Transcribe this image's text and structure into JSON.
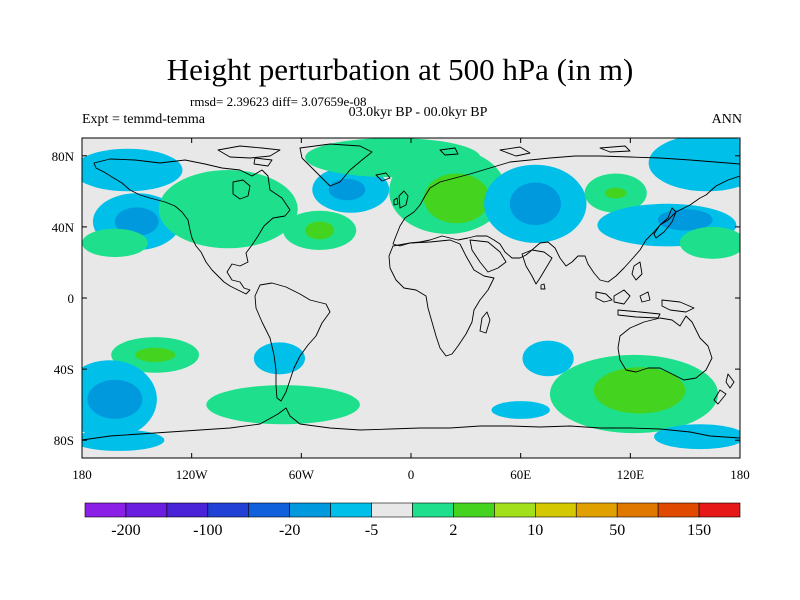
{
  "figure": {
    "title": "Height perturbation at 500 hPa (in m)",
    "stats": "rmsd= 2.39623 diff= 3.07659e-08",
    "experiment": "Expt = temmd-temma",
    "period": "03.0kyr BP - 00.0kyr BP",
    "season": "ANN"
  },
  "map": {
    "lon_range": [
      -180,
      180
    ],
    "lat_range": [
      -90,
      90
    ],
    "lon_ticks": [
      {
        "lon": -180,
        "label": "180"
      },
      {
        "lon": -120,
        "label": "120W"
      },
      {
        "lon": -60,
        "label": "60W"
      },
      {
        "lon": 0,
        "label": "0"
      },
      {
        "lon": 60,
        "label": "60E"
      },
      {
        "lon": 120,
        "label": "120E"
      },
      {
        "lon": 180,
        "label": "180"
      }
    ],
    "lat_ticks": [
      {
        "lat": 80,
        "label": "80N"
      },
      {
        "lat": 40,
        "label": "40N"
      },
      {
        "lat": 0,
        "label": "0"
      },
      {
        "lat": -40,
        "label": "40S"
      },
      {
        "lat": -80,
        "label": "80S"
      }
    ],
    "background_color": "#e8e8e8",
    "coastline_color": "#000000",
    "field_regions": [
      {
        "name": "arctic-cyan-west",
        "lon": -155,
        "lat": 72,
        "rx": 30,
        "ry": 12,
        "color": "#00bfe8"
      },
      {
        "name": "n-pacific-cyan",
        "lon": -150,
        "lat": 43,
        "rx": 24,
        "ry": 16,
        "color": "#00bfe8"
      },
      {
        "name": "n-pacific-blue",
        "lon": -150,
        "lat": 43,
        "rx": 12,
        "ry": 8,
        "color": "#0099dd"
      },
      {
        "name": "w-pacific-green-n",
        "lon": -162,
        "lat": 31,
        "rx": 18,
        "ry": 8,
        "color": "#1ee08c"
      },
      {
        "name": "n-america-green",
        "lon": -100,
        "lat": 50,
        "rx": 38,
        "ry": 22,
        "color": "#1ee08c"
      },
      {
        "name": "n-atlantic-green",
        "lon": -50,
        "lat": 38,
        "rx": 20,
        "ry": 11,
        "color": "#1ee08c"
      },
      {
        "name": "n-atlantic-green-core",
        "lon": -50,
        "lat": 38,
        "rx": 8,
        "ry": 5,
        "color": "#44d31e"
      },
      {
        "name": "greenland-cyan",
        "lon": -33,
        "lat": 61,
        "rx": 21,
        "ry": 13,
        "color": "#00bfe8"
      },
      {
        "name": "greenland-blue",
        "lon": -35,
        "lat": 61,
        "rx": 10,
        "ry": 6,
        "color": "#0099dd"
      },
      {
        "name": "arctic-green",
        "lon": -10,
        "lat": 79,
        "rx": 48,
        "ry": 11,
        "color": "#1ee08c"
      },
      {
        "name": "europe-green",
        "lon": 20,
        "lat": 60,
        "rx": 32,
        "ry": 24,
        "color": "#1ee08c"
      },
      {
        "name": "europe-green-core",
        "lon": 25,
        "lat": 56,
        "rx": 18,
        "ry": 14,
        "color": "#44d31e"
      },
      {
        "name": "siberia-cyan",
        "lon": 68,
        "lat": 53,
        "rx": 28,
        "ry": 22,
        "color": "#00bfe8"
      },
      {
        "name": "siberia-blue",
        "lon": 68,
        "lat": 53,
        "rx": 14,
        "ry": 12,
        "color": "#0099dd"
      },
      {
        "name": "e-siberia-green",
        "lon": 112,
        "lat": 59,
        "rx": 17,
        "ry": 11,
        "color": "#1ee08c"
      },
      {
        "name": "e-siberia-green-core",
        "lon": 112,
        "lat": 59,
        "rx": 6,
        "ry": 3,
        "color": "#44d31e"
      },
      {
        "name": "e-arctic-cyan",
        "lon": 162,
        "lat": 76,
        "rx": 32,
        "ry": 16,
        "color": "#00bfe8"
      },
      {
        "name": "nw-pacific-cyan",
        "lon": 140,
        "lat": 41,
        "rx": 38,
        "ry": 12,
        "color": "#00bfe8"
      },
      {
        "name": "nw-pacific-blue",
        "lon": 150,
        "lat": 44,
        "rx": 15,
        "ry": 6,
        "color": "#0099dd"
      },
      {
        "name": "c-pacific-green",
        "lon": 165,
        "lat": 31,
        "rx": 18,
        "ry": 9,
        "color": "#1ee08c"
      },
      {
        "name": "s-pacific-green",
        "lon": -140,
        "lat": -32,
        "rx": 24,
        "ry": 10,
        "color": "#1ee08c"
      },
      {
        "name": "s-pacific-green-core",
        "lon": -140,
        "lat": -32,
        "rx": 11,
        "ry": 4,
        "color": "#44d31e"
      },
      {
        "name": "s-america-cyan",
        "lon": -72,
        "lat": -34,
        "rx": 14,
        "ry": 9,
        "color": "#00bfe8"
      },
      {
        "name": "sw-pacific-cyan",
        "lon": -165,
        "lat": -57,
        "rx": 26,
        "ry": 22,
        "color": "#00bfe8"
      },
      {
        "name": "sw-pacific-blue",
        "lon": -162,
        "lat": -57,
        "rx": 15,
        "ry": 11,
        "color": "#0099dd"
      },
      {
        "name": "s-atlantic-green",
        "lon": -70,
        "lat": -60,
        "rx": 42,
        "ry": 11,
        "color": "#1ee08c"
      },
      {
        "name": "s-indian-cyan",
        "lon": 75,
        "lat": -34,
        "rx": 14,
        "ry": 10,
        "color": "#00bfe8"
      },
      {
        "name": "s-atlantic-cyan",
        "lon": 60,
        "lat": -63,
        "rx": 16,
        "ry": 5,
        "color": "#00bfe8"
      },
      {
        "name": "s-indian-green",
        "lon": 122,
        "lat": -54,
        "rx": 46,
        "ry": 22,
        "color": "#1ee08c"
      },
      {
        "name": "s-indian-green-core",
        "lon": 125,
        "lat": -52,
        "rx": 25,
        "ry": 13,
        "color": "#44d31e"
      },
      {
        "name": "antarctic-cyan",
        "lon": -160,
        "lat": -80,
        "rx": 25,
        "ry": 6,
        "color": "#00bfe8"
      },
      {
        "name": "antarctic-cyan-east",
        "lon": 158,
        "lat": -78,
        "rx": 25,
        "ry": 7,
        "color": "#00bfe8"
      }
    ]
  },
  "colorbar": {
    "colors": [
      "#8c1fe6",
      "#6a1fe0",
      "#4a23d8",
      "#2040d6",
      "#1060db",
      "#0099dd",
      "#00bfe8",
      "#e8e8e8",
      "#1ee08c",
      "#44d31e",
      "#a2e01c",
      "#d4c800",
      "#e0a000",
      "#e07800",
      "#e04a00",
      "#e61818"
    ],
    "labels": [
      {
        "index": 1,
        "label": "-200"
      },
      {
        "index": 3,
        "label": "-100"
      },
      {
        "index": 5,
        "label": "-20"
      },
      {
        "index": 7,
        "label": "-5"
      },
      {
        "index": 9,
        "label": "2"
      },
      {
        "index": 11,
        "label": "10"
      },
      {
        "index": 13,
        "label": "50"
      },
      {
        "index": 15,
        "label": "150"
      }
    ]
  }
}
